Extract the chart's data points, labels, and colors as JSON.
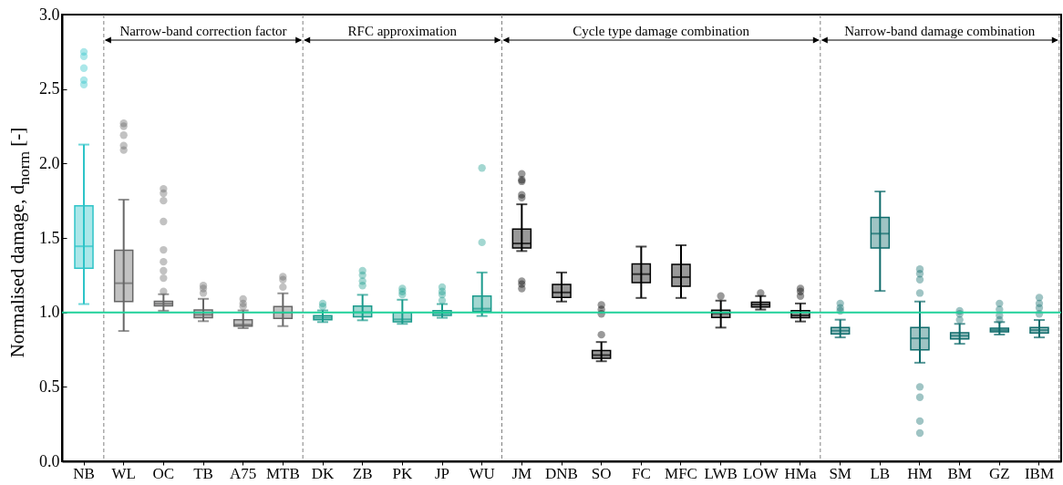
{
  "chart_data": {
    "type": "box",
    "ylabel": "Normalised damage, d$_{norm}$ [-]",
    "categories": [
      "NB",
      "WL",
      "OC",
      "TB",
      "A75",
      "MTB",
      "DK",
      "ZB",
      "PK",
      "JP",
      "WU",
      "JM",
      "DNB",
      "SO",
      "FC",
      "MFC",
      "LWB",
      "LOW",
      "HMa",
      "SM",
      "LB",
      "HM",
      "BM",
      "GZ",
      "IBM"
    ],
    "ylim": [
      0,
      3
    ],
    "yticks": [
      {
        "value": 0,
        "label": "0.0"
      },
      {
        "value": 0.5,
        "label": "0.5"
      },
      {
        "value": 1,
        "label": "1.0"
      },
      {
        "value": 1.5,
        "label": "1.5"
      },
      {
        "value": 2,
        "label": "2.0"
      },
      {
        "value": 2.5,
        "label": "2.5"
      },
      {
        "value": 3,
        "label": "3.0"
      }
    ],
    "series": [
      {
        "color": "#2ec4c8",
        "boxes": [
          {
            "low": 1.056,
            "q1": 1.297,
            "median": 1.444,
            "q3": 1.716,
            "high": 2.127,
            "outliers": [
              2.75,
              2.72,
              2.64,
              2.56,
              2.53
            ]
          },
          null,
          null,
          null,
          null,
          null,
          null,
          null,
          null,
          null,
          null,
          null,
          null,
          null,
          null,
          null,
          null,
          null,
          null,
          null,
          null,
          null,
          null,
          null,
          null
        ]
      },
      {
        "color": "#666666",
        "boxes": [
          null,
          {
            "low": 0.875,
            "q1": 1.073,
            "median": 1.196,
            "q3": 1.418,
            "high": 1.757,
            "outliers": [
              2.27,
              2.25,
              2.19,
              2.12,
              2.09
            ]
          },
          {
            "low": 1.011,
            "q1": 1.044,
            "median": 1.058,
            "q3": 1.075,
            "high": 1.122,
            "outliers": [
              1.83,
              1.8,
              1.75,
              1.61,
              1.42,
              1.34,
              1.28,
              1.23,
              1.14
            ]
          },
          {
            "low": 0.941,
            "q1": 0.964,
            "median": 0.984,
            "q3": 1.017,
            "high": 1.091,
            "outliers": [
              1.18,
              1.16,
              1.13
            ]
          },
          {
            "low": 0.894,
            "q1": 0.908,
            "median": 0.918,
            "q3": 0.951,
            "high": 1.013,
            "outliers": [
              1.09,
              1.06,
              1.04
            ]
          },
          {
            "low": 0.908,
            "q1": 0.96,
            "median": 0.998,
            "q3": 1.04,
            "high": 1.128,
            "outliers": [
              1.24,
              1.22,
              1.17
            ]
          },
          null,
          null,
          null,
          null,
          null,
          null,
          null,
          null,
          null,
          null,
          null,
          null,
          null,
          null,
          null,
          null,
          null,
          null,
          null
        ]
      },
      {
        "color": "#1a9a8c",
        "boxes": [
          null,
          null,
          null,
          null,
          null,
          null,
          {
            "low": 0.935,
            "q1": 0.951,
            "median": 0.964,
            "q3": 0.978,
            "high": 1.013,
            "outliers": [
              1.06,
              1.04
            ]
          },
          {
            "low": 0.947,
            "q1": 0.97,
            "median": 1.001,
            "q3": 1.042,
            "high": 1.118,
            "outliers": [
              1.28,
              1.25,
              1.21,
              1.18
            ]
          },
          {
            "low": 0.923,
            "q1": 0.937,
            "median": 0.953,
            "q3": 0.999,
            "high": 1.085,
            "outliers": [
              1.16,
              1.14,
              1.12
            ]
          },
          {
            "low": 0.964,
            "q1": 0.98,
            "median": 0.994,
            "q3": 1.011,
            "high": 1.056,
            "outliers": [
              1.17,
              1.14,
              1.12,
              1.08
            ]
          },
          {
            "low": 0.976,
            "q1": 1.007,
            "median": 1.025,
            "q3": 1.11,
            "high": 1.268,
            "outliers": [
              1.97,
              1.47
            ]
          },
          null,
          null,
          null,
          null,
          null,
          null,
          null,
          null,
          null,
          null,
          null,
          null,
          null,
          null
        ]
      },
      {
        "color": "#000000",
        "boxes": [
          null,
          null,
          null,
          null,
          null,
          null,
          null,
          null,
          null,
          null,
          null,
          {
            "low": 1.412,
            "q1": 1.432,
            "median": 1.463,
            "q3": 1.559,
            "high": 1.726,
            "outliers": [
              1.93,
              1.89,
              1.88,
              1.79,
              1.77,
              1.21,
              1.19,
              1.16
            ]
          },
          {
            "low": 1.073,
            "q1": 1.101,
            "median": 1.134,
            "q3": 1.188,
            "high": 1.268
          },
          {
            "low": 0.672,
            "q1": 0.692,
            "median": 0.713,
            "q3": 0.744,
            "high": 0.801,
            "outliers": [
              1.05,
              1.02,
              0.99,
              0.85
            ]
          },
          {
            "low": 1.097,
            "q1": 1.2,
            "median": 1.257,
            "q3": 1.325,
            "high": 1.442
          },
          {
            "low": 1.097,
            "q1": 1.175,
            "median": 1.237,
            "q3": 1.323,
            "high": 1.451
          },
          {
            "low": 0.898,
            "q1": 0.966,
            "median": 0.994,
            "q3": 1.015,
            "high": 1.079,
            "outliers": [
              1.11
            ]
          },
          {
            "low": 1.019,
            "q1": 1.036,
            "median": 1.052,
            "q3": 1.068,
            "high": 1.11,
            "outliers": [
              1.13
            ]
          },
          {
            "low": 0.939,
            "q1": 0.964,
            "median": 0.98,
            "q3": 1.011,
            "high": 1.06,
            "outliers": [
              1.16,
              1.14,
              1.11
            ]
          },
          null,
          null,
          null,
          null,
          null,
          null
        ]
      },
      {
        "color": "#0e6b6b",
        "boxes": [
          null,
          null,
          null,
          null,
          null,
          null,
          null,
          null,
          null,
          null,
          null,
          null,
          null,
          null,
          null,
          null,
          null,
          null,
          null,
          {
            "low": 0.832,
            "q1": 0.855,
            "median": 0.877,
            "q3": 0.898,
            "high": 0.951,
            "outliers": [
              1.06,
              1.03,
              1.01
            ]
          },
          {
            "low": 1.144,
            "q1": 1.432,
            "median": 1.529,
            "q3": 1.638,
            "high": 1.812
          },
          {
            "low": 0.662,
            "q1": 0.748,
            "median": 0.826,
            "q3": 0.898,
            "high": 1.073,
            "outliers": [
              1.29,
              1.26,
              1.22,
              1.13,
              0.5,
              0.43,
              0.27,
              0.19
            ]
          },
          {
            "low": 0.789,
            "q1": 0.822,
            "median": 0.843,
            "q3": 0.863,
            "high": 0.923,
            "outliers": [
              1.01,
              0.99,
              0.95
            ]
          },
          {
            "low": 0.851,
            "q1": 0.869,
            "median": 0.881,
            "q3": 0.894,
            "high": 0.935,
            "outliers": [
              1.06,
              1.02,
              0.98,
              0.95
            ]
          },
          {
            "low": 0.832,
            "q1": 0.861,
            "median": 0.881,
            "q3": 0.898,
            "high": 0.949,
            "outliers": [
              1.1,
              1.06,
              1.03,
              0.99
            ]
          }
        ]
      }
    ],
    "ref_lines": [
      {
        "axis": "y",
        "value": 1,
        "color": "#1fd19a"
      }
    ],
    "annotations": [
      "Narrow-band correction factor",
      "RFC approximation",
      "Cycle type damage combination",
      "Narrow-band damage combination"
    ]
  }
}
